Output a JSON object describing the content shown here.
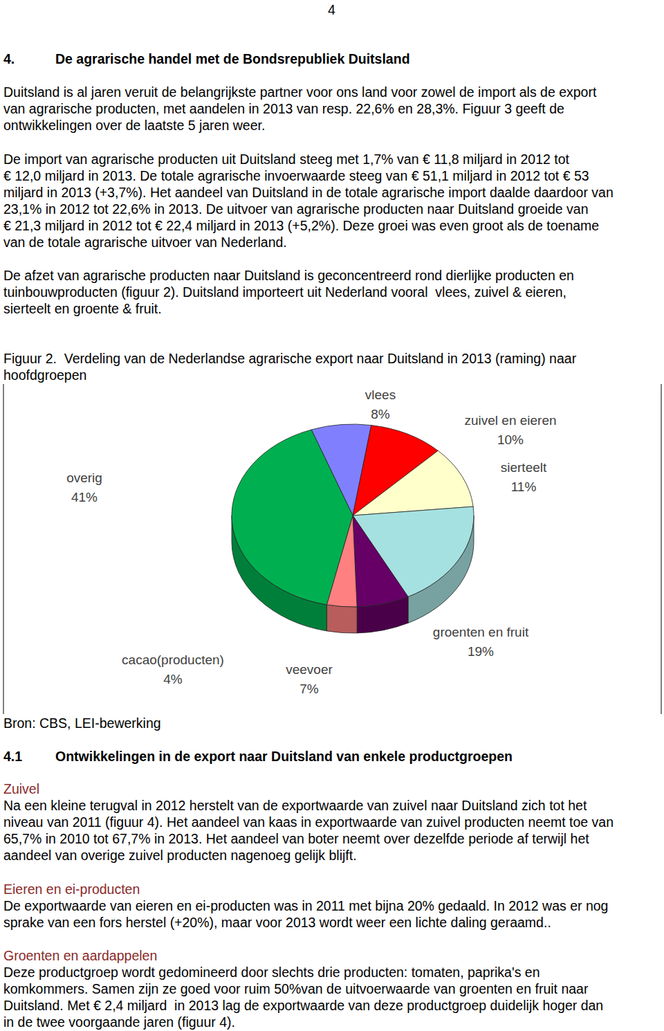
{
  "page_number": "4",
  "heading": {
    "number": "4.",
    "title": "De agrarische handel met de Bondsrepubliek Duitsland"
  },
  "paragraphs": [
    [
      "Duitsland is al jaren veruit de belangrijkste partner voor ons land voor zowel de import als de export",
      "van agrarische producten, met aandelen in 2013 van resp. 22,6% en 28,3%. Figuur 3 geeft de",
      "ontwikkelingen over de laatste 5 jaren weer."
    ],
    [
      "De import van agrarische producten uit Duitsland steeg met 1,7% van € 11,8 miljard in 2012 tot",
      "€ 12,0 miljard in 2013. De totale agrarische invoerwaarde steeg van € 51,1 miljard in 2012 tot € 53",
      "miljard in 2013 (+3,7%). Het aandeel van Duitsland in de totale agrarische import daalde daardoor van",
      "23,1% in 2012 tot 22,6% in 2013. De uitvoer van agrarische producten naar Duitsland groeide van",
      "€ 21,3 miljard in 2012 tot € 22,4 miljard in 2013 (+5,2%). Deze groei was even groot als de toename",
      "van de totale agrarische uitvoer van Nederland."
    ],
    [
      "De afzet van agrarische producten naar Duitsland is geconcentreerd rond dierlijke producten en",
      "tuinbouwproducten (figuur 2). Duitsland importeert uit Nederland vooral  vlees, zuivel & eieren,",
      "sierteelt en groente & fruit."
    ]
  ],
  "figure": {
    "caption": [
      "Figuur 2.  Verdeling van de Nederlandse agrarische export naar Duitsland in 2013 (raming) naar",
      "hoofdgroepen"
    ],
    "source": "Bron: CBS, LEI-bewerking"
  },
  "chart_data": {
    "type": "pie",
    "categories": [
      "vlees",
      "zuivel en eieren",
      "sierteelt",
      "groenten en fruit",
      "veevoer",
      "cacao(producten)",
      "overig"
    ],
    "values": [
      8,
      10,
      11,
      19,
      7,
      4,
      41
    ],
    "value_labels": [
      "8%",
      "10%",
      "11%",
      "19%",
      "7%",
      "4%",
      "41%"
    ],
    "colors": [
      "#8080ff",
      "#ff0000",
      "#ffffcc",
      "#a6e1e1",
      "#660066",
      "#ff8080",
      "#00b050"
    ],
    "data_labels": true
  },
  "section": {
    "number": "4.1",
    "title": "Ontwikkelingen in de export naar Duitsland van enkele productgroepen"
  },
  "subsections": [
    {
      "title": "Zuivel",
      "lines": [
        "Na een kleine terugval in 2012 herstelt van de exportwaarde van zuivel naar Duitsland zich tot het",
        "niveau van 2011 (figuur 4). Het aandeel van kaas in exportwaarde van zuivel producten neemt toe van",
        "65,7% in 2010 tot 67,7% in 2013. Het aandeel van boter neemt over dezelfde periode af terwijl het",
        "aandeel van overige zuivel producten nagenoeg gelijk blijft."
      ]
    },
    {
      "title": "Eieren en ei-producten",
      "lines": [
        "De exportwaarde van eieren en ei-producten was in 2011 met bijna 20% gedaald. In 2012 was er nog",
        "sprake van een fors herstel (+20%), maar voor 2013 wordt weer een lichte daling geraamd.."
      ]
    },
    {
      "title": "Groenten en aardappelen",
      "lines": [
        "Deze productgroep wordt gedomineerd door slechts drie producten: tomaten, paprika's en",
        "komkommers. Samen zijn ze goed voor ruim 50%van de uitvoerwaarde van groenten en fruit naar",
        "Duitsland. Met € 2,4 miljard  in 2013 lag de exportwaarde van deze productgroep duidelijk hoger dan",
        "in de twee voorgaande jaren (figuur 4)."
      ]
    }
  ]
}
